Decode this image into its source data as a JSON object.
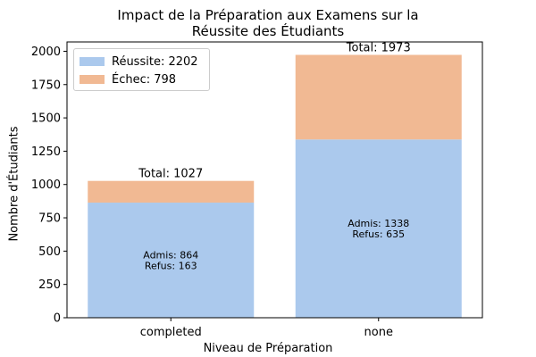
{
  "chart_data": {
    "type": "bar",
    "stacked": true,
    "title_line1": "Impact de la Préparation aux Examens sur la",
    "title_line2": "Réussite des Étudiants",
    "xlabel": "Niveau de Préparation",
    "ylabel": "Nombre d'Étudiants",
    "categories": [
      "completed",
      "none"
    ],
    "series": [
      {
        "name": "Réussite: 2202",
        "values": [
          864,
          1338
        ],
        "color": "#abc9ed"
      },
      {
        "name": "Échec: 798",
        "values": [
          163,
          635
        ],
        "color": "#f1b993"
      }
    ],
    "totals": [
      "Total: 1027",
      "Total: 1973"
    ],
    "inner_labels": [
      {
        "line1": "Admis: 864",
        "line2": "Refus: 163"
      },
      {
        "line1": "Admis: 1338",
        "line2": "Refus: 635"
      }
    ],
    "ylim": [
      0,
      2070
    ],
    "yticks": [
      0,
      250,
      500,
      750,
      1000,
      1250,
      1500,
      1750,
      2000
    ],
    "legend_position": "top-left",
    "grid": false
  }
}
